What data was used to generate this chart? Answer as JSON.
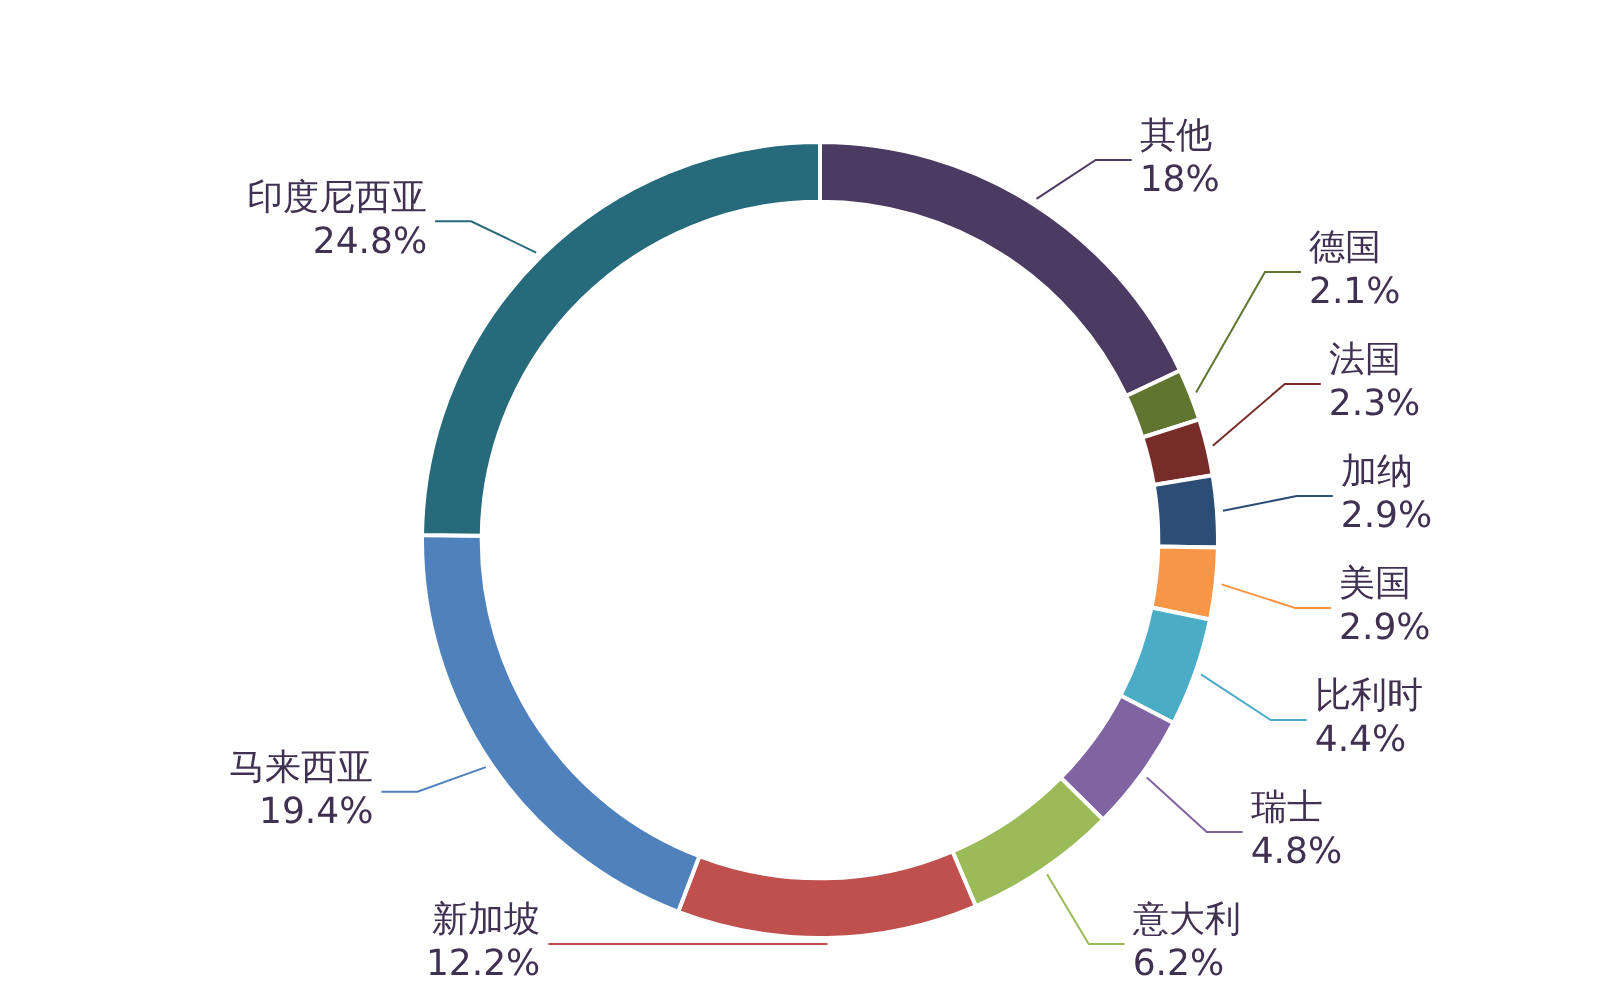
{
  "chart_data": {
    "type": "donut",
    "categories": [
      "其他",
      "德国",
      "法国",
      "加纳",
      "美国",
      "比利时",
      "瑞士",
      "意大利",
      "新加坡",
      "马来西亚",
      "印度尼西亚"
    ],
    "values": [
      18,
      2.1,
      2.3,
      2.9,
      2.9,
      4.4,
      4.8,
      6.2,
      12.2,
      19.4,
      24.8
    ],
    "value_labels": [
      "18%",
      "2.1%",
      "2.3%",
      "2.9%",
      "2.9%",
      "4.4%",
      "4.8%",
      "6.2%",
      "12.2%",
      "19.4%",
      "24.8%"
    ],
    "colors": [
      "#4b3a61",
      "#5f7530",
      "#772c2a",
      "#2c4d75",
      "#f79646",
      "#4bacc6",
      "#8064a2",
      "#9bbb59",
      "#c0504d",
      "#4f81bd",
      "#276a7c"
    ]
  }
}
